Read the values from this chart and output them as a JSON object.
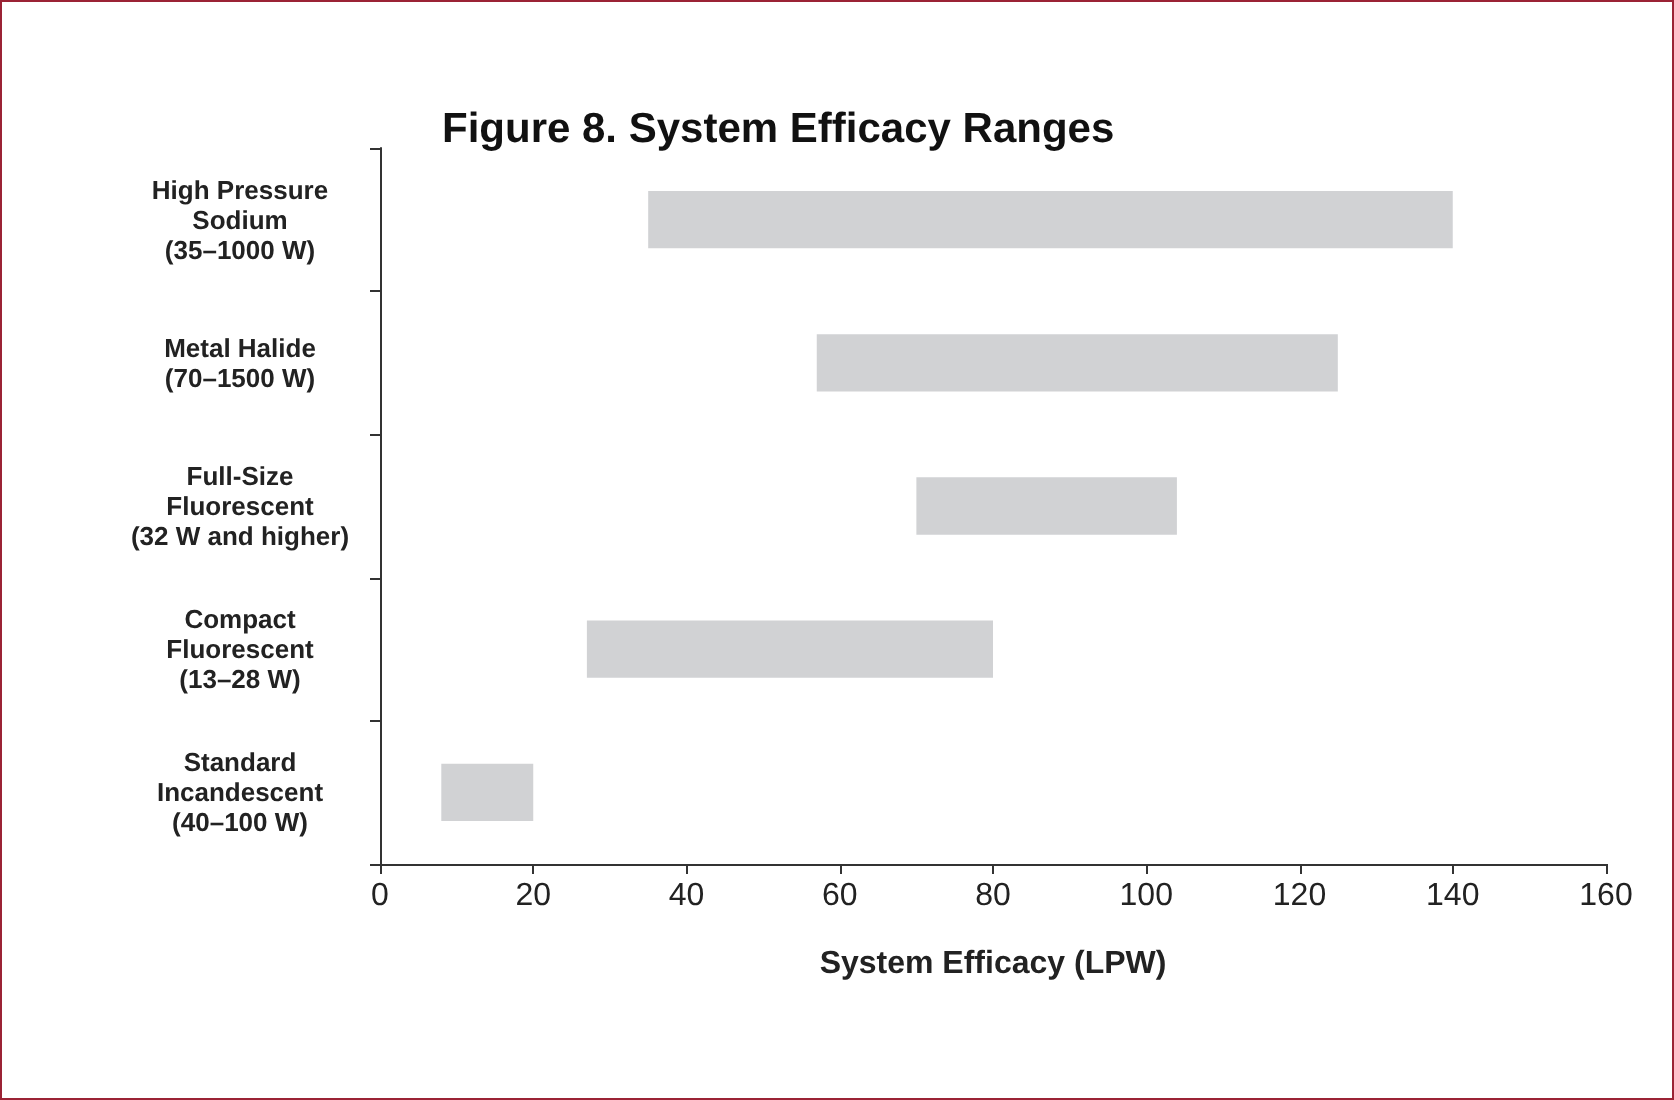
{
  "chart_data": {
    "type": "bar",
    "orientation": "horizontal",
    "title": "Figure 8. System Efficacy Ranges",
    "xlabel": "System Efficacy (LPW)",
    "categories": [
      "High Pressure\nSodium\n(35–1000 W)",
      "Metal Halide\n(70–1500 W)",
      "Full-Size\nFluorescent\n(32 W and higher)",
      "Compact\nFluorescent\n(13–28 W)",
      "Standard\nIncandescent\n(40–100 W)"
    ],
    "base": [
      35,
      57,
      70,
      27,
      8
    ],
    "values": [
      105,
      68,
      34,
      53,
      12
    ],
    "color": "#d1d2d4",
    "xlim": [
      0,
      160
    ],
    "xticks": [
      0,
      20,
      40,
      60,
      80,
      100,
      120,
      140,
      160
    ],
    "grid": false
  }
}
